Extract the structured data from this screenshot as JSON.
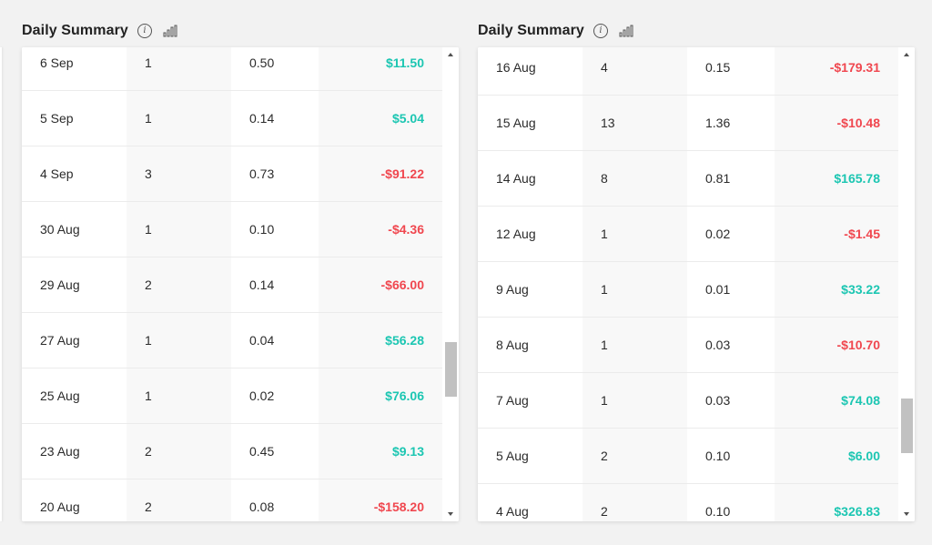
{
  "panels": [
    {
      "title": "Daily Summary",
      "rows": [
        {
          "date": "6 Sep",
          "count": "1",
          "lots": "0.50",
          "pnl": "$11.50",
          "sign": "pos"
        },
        {
          "date": "5 Sep",
          "count": "1",
          "lots": "0.14",
          "pnl": "$5.04",
          "sign": "pos"
        },
        {
          "date": "4 Sep",
          "count": "3",
          "lots": "0.73",
          "pnl": "-$91.22",
          "sign": "neg"
        },
        {
          "date": "30 Aug",
          "count": "1",
          "lots": "0.10",
          "pnl": "-$4.36",
          "sign": "neg"
        },
        {
          "date": "29 Aug",
          "count": "2",
          "lots": "0.14",
          "pnl": "-$66.00",
          "sign": "neg"
        },
        {
          "date": "27 Aug",
          "count": "1",
          "lots": "0.04",
          "pnl": "$56.28",
          "sign": "pos"
        },
        {
          "date": "25 Aug",
          "count": "1",
          "lots": "0.02",
          "pnl": "$76.06",
          "sign": "pos"
        },
        {
          "date": "23 Aug",
          "count": "2",
          "lots": "0.45",
          "pnl": "$9.13",
          "sign": "pos"
        },
        {
          "date": "20 Aug",
          "count": "2",
          "lots": "0.08",
          "pnl": "-$158.20",
          "sign": "neg"
        }
      ]
    },
    {
      "title": "Daily Summary",
      "rows": [
        {
          "date": "16 Aug",
          "count": "4",
          "lots": "0.15",
          "pnl": "-$179.31",
          "sign": "neg"
        },
        {
          "date": "15 Aug",
          "count": "13",
          "lots": "1.36",
          "pnl": "-$10.48",
          "sign": "neg"
        },
        {
          "date": "14 Aug",
          "count": "8",
          "lots": "0.81",
          "pnl": "$165.78",
          "sign": "pos"
        },
        {
          "date": "12 Aug",
          "count": "1",
          "lots": "0.02",
          "pnl": "-$1.45",
          "sign": "neg"
        },
        {
          "date": "9 Aug",
          "count": "1",
          "lots": "0.01",
          "pnl": "$33.22",
          "sign": "pos"
        },
        {
          "date": "8 Aug",
          "count": "1",
          "lots": "0.03",
          "pnl": "-$10.70",
          "sign": "neg"
        },
        {
          "date": "7 Aug",
          "count": "1",
          "lots": "0.03",
          "pnl": "$74.08",
          "sign": "pos"
        },
        {
          "date": "5 Aug",
          "count": "2",
          "lots": "0.10",
          "pnl": "$6.00",
          "sign": "pos"
        },
        {
          "date": "4 Aug",
          "count": "2",
          "lots": "0.10",
          "pnl": "$326.83",
          "sign": "pos"
        }
      ]
    }
  ],
  "icons": {
    "info": "info-icon",
    "chart": "bar-chart-icon"
  },
  "colors": {
    "positive": "#1cc6b2",
    "negative": "#f0474f"
  }
}
